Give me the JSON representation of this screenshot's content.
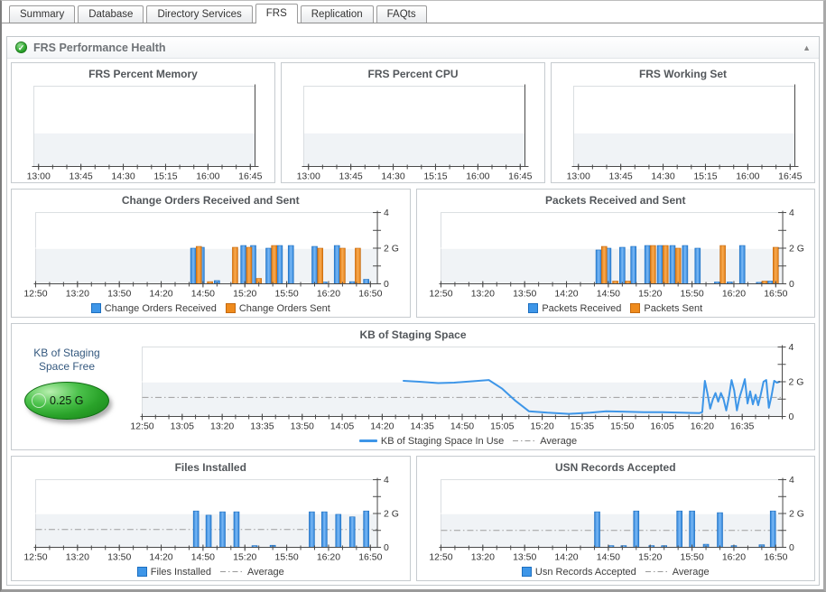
{
  "tabs": [
    {
      "label": "Summary",
      "active": false
    },
    {
      "label": "Database",
      "active": false
    },
    {
      "label": "Directory Services",
      "active": false
    },
    {
      "label": "FRS",
      "active": true
    },
    {
      "label": "Replication",
      "active": false
    },
    {
      "label": "FAQts",
      "active": false
    }
  ],
  "panel": {
    "title": "FRS Performance Health"
  },
  "icons": {
    "status_ok": "✓",
    "collapse": "▲"
  },
  "gauge": {
    "label": "KB of Staging Space Free",
    "value": "0.25 G",
    "color": "#2aa32a"
  },
  "colors": {
    "bar_blue": "#3e96e8",
    "bar_blue_light": "#7ab9f6",
    "bar_blue_dark": "#2b80d6",
    "bar_blue_stroke": "#1d6fc0",
    "bar_orange": "#ef8b1d",
    "bar_orange_light": "#f8ab52",
    "bar_orange_dark": "#e07a12",
    "bar_orange_stroke": "#c4690e",
    "line_blue": "#3e96e8",
    "average_gray": "#9e9e9e",
    "plot_band": "#f0f3f6",
    "axis": "#4a4a4a"
  },
  "chart_data": [
    {
      "id": "frs_percent_memory",
      "type": "area",
      "title": "FRS Percent Memory",
      "x_range": [
        "12:55",
        "16:50"
      ],
      "x_ticks": [
        "13:00",
        "13:45",
        "14:30",
        "15:15",
        "16:00",
        "16:45"
      ],
      "x_minor_start": "13:00",
      "x_minor_step": 15,
      "ylim": [
        0,
        4
      ],
      "gray_top": 1.65,
      "y_ticks": null,
      "series": null,
      "legend": null,
      "margins": {
        "l": 24,
        "r": 22,
        "t": 6,
        "b": 18
      }
    },
    {
      "id": "frs_percent_cpu",
      "type": "area",
      "title": "FRS Percent CPU",
      "x_range": [
        "12:55",
        "16:50"
      ],
      "x_ticks": [
        "13:00",
        "13:45",
        "14:30",
        "15:15",
        "16:00",
        "16:45"
      ],
      "x_minor_start": "13:00",
      "x_minor_step": 15,
      "ylim": [
        0,
        4
      ],
      "gray_top": 1.65,
      "y_ticks": null,
      "series": null,
      "legend": null,
      "margins": {
        "l": 24,
        "r": 22,
        "t": 6,
        "b": 18
      }
    },
    {
      "id": "frs_working_set",
      "type": "area",
      "title": "FRS Working Set",
      "x_range": [
        "12:55",
        "16:50"
      ],
      "x_ticks": [
        "13:00",
        "13:45",
        "14:30",
        "15:15",
        "16:00",
        "16:45"
      ],
      "x_minor_start": "13:00",
      "x_minor_step": 15,
      "ylim": [
        0,
        4
      ],
      "gray_top": 1.65,
      "y_ticks": null,
      "series": null,
      "legend": null,
      "margins": {
        "l": 24,
        "r": 22,
        "t": 6,
        "b": 18
      }
    },
    {
      "id": "change_orders",
      "type": "bar",
      "title": "Change Orders Received and Sent",
      "x_range": [
        "12:50",
        "16:55"
      ],
      "x_ticks": [
        "12:50",
        "13:20",
        "13:50",
        "14:20",
        "14:50",
        "15:20",
        "15:50",
        "16:20",
        "16:50"
      ],
      "x_minor_start": "12:50",
      "x_minor_step": 10,
      "ylim": [
        0,
        4
      ],
      "gray_top": 2,
      "y_ticks": [
        {
          "v": 0,
          "label": "0"
        },
        {
          "v": 1,
          "label": ""
        },
        {
          "v": 2,
          "label": "2 G"
        },
        {
          "v": 3,
          "label": ""
        },
        {
          "v": 4,
          "label": "4"
        }
      ],
      "series": [
        {
          "name": "Change Orders Received",
          "color": "blue",
          "points": [
            [
              "14:43",
              2.0
            ],
            [
              "14:49",
              2.05
            ],
            [
              "15:00",
              0.18
            ],
            [
              "15:19",
              2.15
            ],
            [
              "15:26",
              2.15
            ],
            [
              "15:37",
              2.0
            ],
            [
              "15:45",
              2.15
            ],
            [
              "15:53",
              2.15
            ],
            [
              "16:10",
              2.1
            ],
            [
              "16:17",
              0.1
            ],
            [
              "16:26",
              2.15
            ],
            [
              "16:37",
              0.12
            ],
            [
              "16:47",
              0.25
            ]
          ]
        },
        {
          "name": "Change Orders Sent",
          "color": "orange",
          "points": [
            [
              "14:47",
              2.1
            ],
            [
              "14:55",
              0.12
            ],
            [
              "15:13",
              2.05
            ],
            [
              "15:23",
              2.05
            ],
            [
              "15:30",
              0.3
            ],
            [
              "15:41",
              2.15
            ],
            [
              "16:14",
              2.0
            ],
            [
              "16:30",
              2.0
            ],
            [
              "16:41",
              2.0
            ]
          ]
        }
      ],
      "legend": [
        {
          "swatch": "blue",
          "label": "Change Orders Received"
        },
        {
          "swatch": "orange",
          "label": "Change Orders Sent"
        }
      ],
      "margins": {
        "l": 26,
        "r": 36,
        "t": 6,
        "b": 18
      }
    },
    {
      "id": "packets",
      "type": "bar",
      "title": "Packets Received and Sent",
      "x_range": [
        "12:50",
        "16:55"
      ],
      "x_ticks": [
        "12:50",
        "13:20",
        "13:50",
        "14:20",
        "14:50",
        "15:20",
        "15:50",
        "16:20",
        "16:50"
      ],
      "x_minor_start": "12:50",
      "x_minor_step": 10,
      "ylim": [
        0,
        4
      ],
      "gray_top": 2,
      "y_ticks": [
        {
          "v": 0,
          "label": "0"
        },
        {
          "v": 1,
          "label": ""
        },
        {
          "v": 2,
          "label": "2 G"
        },
        {
          "v": 3,
          "label": ""
        },
        {
          "v": 4,
          "label": "4"
        }
      ],
      "series": [
        {
          "name": "Packets Received",
          "color": "blue",
          "points": [
            [
              "14:43",
              1.9
            ],
            [
              "14:50",
              2.0
            ],
            [
              "15:00",
              2.05
            ],
            [
              "15:08",
              2.1
            ],
            [
              "15:18",
              2.15
            ],
            [
              "15:27",
              2.15
            ],
            [
              "15:36",
              2.15
            ],
            [
              "15:45",
              2.15
            ],
            [
              "15:54",
              2.0
            ],
            [
              "16:08",
              0.1
            ],
            [
              "16:17",
              0.1
            ],
            [
              "16:26",
              2.15
            ],
            [
              "16:38",
              0.08
            ],
            [
              "16:46",
              0.15
            ]
          ]
        },
        {
          "name": "Packets Sent",
          "color": "orange",
          "points": [
            [
              "14:47",
              2.1
            ],
            [
              "14:55",
              0.15
            ],
            [
              "15:04",
              0.15
            ],
            [
              "15:22",
              2.15
            ],
            [
              "15:31",
              2.15
            ],
            [
              "15:40",
              2.0
            ],
            [
              "16:12",
              2.15
            ],
            [
              "16:42",
              0.15
            ],
            [
              "16:50",
              2.05
            ]
          ]
        }
      ],
      "legend": [
        {
          "swatch": "blue",
          "label": "Packets Received"
        },
        {
          "swatch": "orange",
          "label": "Packets Sent"
        }
      ],
      "margins": {
        "l": 26,
        "r": 36,
        "t": 6,
        "b": 18
      }
    },
    {
      "id": "kb_staging",
      "type": "line",
      "title": "KB of Staging Space",
      "x_range": [
        "12:50",
        "16:50"
      ],
      "x_ticks": [
        "12:50",
        "13:05",
        "13:20",
        "13:35",
        "13:50",
        "14:05",
        "14:20",
        "14:35",
        "14:50",
        "15:05",
        "15:20",
        "15:35",
        "15:50",
        "16:05",
        "16:20",
        "16:35"
      ],
      "x_minor_start": "12:50",
      "x_minor_step": 5,
      "ylim": [
        0,
        4
      ],
      "gray_top": 2,
      "average": 1.1,
      "y_ticks": [
        {
          "v": 0,
          "label": "0"
        },
        {
          "v": 1,
          "label": ""
        },
        {
          "v": 2,
          "label": "2 G"
        },
        {
          "v": 3,
          "label": ""
        },
        {
          "v": 4,
          "label": "4"
        }
      ],
      "series": [
        {
          "name": "KB of Staging Space In Use",
          "color": "blue",
          "points": [
            [
              "14:28",
              2.05
            ],
            [
              "14:34",
              2.0
            ],
            [
              "14:41",
              1.92
            ],
            [
              "14:47",
              1.95
            ],
            [
              "15:00",
              2.1
            ],
            [
              "15:05",
              1.6
            ],
            [
              "15:10",
              0.9
            ],
            [
              "15:15",
              0.3
            ],
            [
              "15:22",
              0.22
            ],
            [
              "15:30",
              0.15
            ],
            [
              "15:38",
              0.22
            ],
            [
              "15:44",
              0.3
            ],
            [
              "15:50",
              0.28
            ],
            [
              "15:58",
              0.25
            ],
            [
              "16:05",
              0.25
            ],
            [
              "16:12",
              0.22
            ],
            [
              "16:19",
              0.2
            ],
            [
              "16:20",
              0.25
            ],
            [
              "16:21",
              2.05
            ],
            [
              "16:22",
              1.3
            ],
            [
              "16:23",
              0.45
            ],
            [
              "16:24",
              1.0
            ],
            [
              "16:25",
              1.35
            ],
            [
              "16:26",
              0.85
            ],
            [
              "16:27",
              1.35
            ],
            [
              "16:28",
              1.0
            ],
            [
              "16:29",
              0.35
            ],
            [
              "16:30",
              1.1
            ],
            [
              "16:31",
              2.1
            ],
            [
              "16:32",
              1.5
            ],
            [
              "16:33",
              0.35
            ],
            [
              "16:34",
              1.1
            ],
            [
              "16:35",
              1.6
            ],
            [
              "16:36",
              2.15
            ],
            [
              "16:37",
              0.75
            ],
            [
              "16:38",
              1.45
            ],
            [
              "16:39",
              0.7
            ],
            [
              "16:40",
              1.25
            ],
            [
              "16:41",
              0.65
            ],
            [
              "16:42",
              1.3
            ],
            [
              "16:43",
              2.0
            ],
            [
              "16:44",
              2.1
            ],
            [
              "16:45",
              0.5
            ],
            [
              "16:46",
              1.2
            ],
            [
              "16:47",
              2.05
            ],
            [
              "16:48",
              1.95
            ],
            [
              "16:49",
              2.0
            ]
          ]
        }
      ],
      "legend": [
        {
          "sample": "line",
          "label": "KB of Staging Space In Use"
        },
        {
          "sample": "dashdot",
          "label": "Average"
        }
      ],
      "margins": {
        "l": 22,
        "r": 36,
        "t": 6,
        "b": 18
      }
    },
    {
      "id": "files_installed",
      "type": "bar",
      "title": "Files Installed",
      "x_range": [
        "12:50",
        "16:55"
      ],
      "x_ticks": [
        "12:50",
        "13:20",
        "13:50",
        "14:20",
        "14:50",
        "15:20",
        "15:50",
        "16:20",
        "16:50"
      ],
      "x_minor_start": "12:50",
      "x_minor_step": 10,
      "ylim": [
        0,
        4
      ],
      "gray_top": 2,
      "average": 1.05,
      "y_ticks": [
        {
          "v": 0,
          "label": "0"
        },
        {
          "v": 1,
          "label": ""
        },
        {
          "v": 2,
          "label": "2 G"
        },
        {
          "v": 3,
          "label": ""
        },
        {
          "v": 4,
          "label": "4"
        }
      ],
      "series": [
        {
          "name": "Files Installed",
          "color": "blue",
          "points": [
            [
              "14:45",
              2.15
            ],
            [
              "14:54",
              1.9
            ],
            [
              "15:04",
              2.1
            ],
            [
              "15:14",
              2.1
            ],
            [
              "15:27",
              0.1
            ],
            [
              "15:40",
              0.12
            ],
            [
              "16:08",
              2.1
            ],
            [
              "16:17",
              2.1
            ],
            [
              "16:27",
              1.95
            ],
            [
              "16:37",
              1.8
            ],
            [
              "16:47",
              2.15
            ]
          ]
        }
      ],
      "legend": [
        {
          "swatch": "blue",
          "label": "Files Installed"
        },
        {
          "sample": "dashdot",
          "label": "Average"
        }
      ],
      "margins": {
        "l": 26,
        "r": 36,
        "t": 6,
        "b": 18
      }
    },
    {
      "id": "usn_records",
      "type": "bar",
      "title": "USN Records Accepted",
      "x_range": [
        "12:50",
        "16:55"
      ],
      "x_ticks": [
        "12:50",
        "13:20",
        "13:50",
        "14:20",
        "14:50",
        "15:20",
        "15:50",
        "16:20",
        "16:50"
      ],
      "x_minor_start": "12:50",
      "x_minor_step": 10,
      "ylim": [
        0,
        4
      ],
      "gray_top": 2,
      "average": 1.0,
      "y_ticks": [
        {
          "v": 0,
          "label": "0"
        },
        {
          "v": 1,
          "label": ""
        },
        {
          "v": 2,
          "label": "2 G"
        },
        {
          "v": 3,
          "label": ""
        },
        {
          "v": 4,
          "label": "4"
        }
      ],
      "series": [
        {
          "name": "Usn Records Accepted",
          "color": "blue",
          "points": [
            [
              "14:42",
              2.1
            ],
            [
              "14:52",
              0.1
            ],
            [
              "15:01",
              0.1
            ],
            [
              "15:10",
              2.15
            ],
            [
              "15:21",
              0.1
            ],
            [
              "15:30",
              0.1
            ],
            [
              "15:41",
              2.15
            ],
            [
              "15:50",
              2.15
            ],
            [
              "16:00",
              0.18
            ],
            [
              "16:10",
              2.05
            ],
            [
              "16:20",
              0.1
            ],
            [
              "16:40",
              0.15
            ],
            [
              "16:48",
              2.15
            ]
          ]
        }
      ],
      "legend": [
        {
          "swatch": "blue",
          "label": "Usn Records Accepted"
        },
        {
          "sample": "dashdot",
          "label": "Average"
        }
      ],
      "margins": {
        "l": 26,
        "r": 36,
        "t": 6,
        "b": 18
      }
    }
  ]
}
